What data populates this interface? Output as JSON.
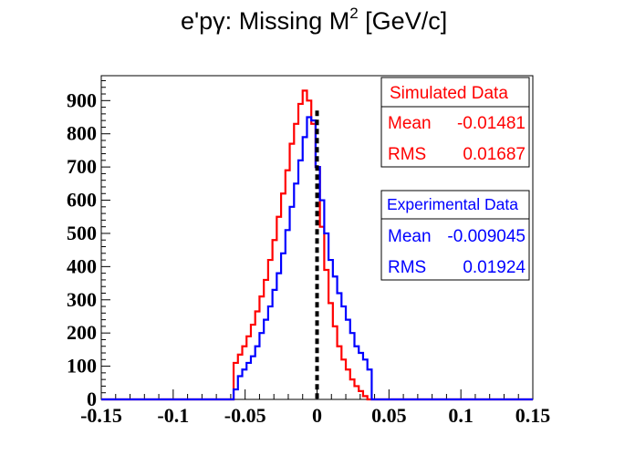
{
  "title_main": "e'pγ: Missing M",
  "title_sup": "2",
  "title_unit": " [GeV/c]",
  "chart_data": {
    "type": "histogram",
    "title": "e'pγ: Missing M² [GeV/c]",
    "xlim": [
      -0.15,
      0.15
    ],
    "ylim": [
      0,
      975
    ],
    "x_ticks": [
      "-0.15",
      "-0.1",
      "-0.05",
      "0",
      "0.05",
      "0.1",
      "0.15"
    ],
    "y_ticks": [
      "0",
      "100",
      "200",
      "300",
      "400",
      "500",
      "600",
      "700",
      "800",
      "900"
    ],
    "cut_line": {
      "x": 0,
      "style": "dashed",
      "color": "#000000"
    },
    "series": [
      {
        "name": "Simulated Data",
        "color": "#ff0000",
        "x": [
          -0.15,
          -0.06,
          -0.058,
          -0.055,
          -0.052,
          -0.049,
          -0.046,
          -0.043,
          -0.04,
          -0.037,
          -0.034,
          -0.031,
          -0.028,
          -0.025,
          -0.022,
          -0.019,
          -0.016,
          -0.013,
          -0.01,
          -0.007,
          -0.004,
          -0.001,
          0.002,
          0.005,
          0.008,
          0.011,
          0.014,
          0.017,
          0.02,
          0.023,
          0.026,
          0.029,
          0.032,
          0.035,
          0.15
        ],
        "y": [
          0,
          0,
          110,
          135,
          160,
          190,
          225,
          265,
          310,
          360,
          420,
          480,
          550,
          620,
          690,
          770,
          830,
          890,
          930,
          900,
          830,
          700,
          520,
          390,
          290,
          220,
          160,
          120,
          90,
          60,
          40,
          25,
          10,
          0,
          0
        ]
      },
      {
        "name": "Experimental Data",
        "color": "#0000ff",
        "x": [
          -0.15,
          -0.06,
          -0.058,
          -0.055,
          -0.052,
          -0.049,
          -0.046,
          -0.043,
          -0.04,
          -0.037,
          -0.034,
          -0.031,
          -0.028,
          -0.025,
          -0.022,
          -0.019,
          -0.016,
          -0.013,
          -0.01,
          -0.007,
          -0.004,
          -0.001,
          0.002,
          0.005,
          0.008,
          0.011,
          0.014,
          0.017,
          0.02,
          0.023,
          0.026,
          0.029,
          0.032,
          0.035,
          0.038,
          0.15
        ],
        "y": [
          0,
          0,
          30,
          70,
          90,
          110,
          130,
          160,
          200,
          240,
          280,
          330,
          380,
          440,
          510,
          580,
          650,
          720,
          790,
          850,
          840,
          700,
          600,
          500,
          420,
          370,
          320,
          280,
          240,
          200,
          160,
          140,
          120,
          90,
          0,
          0
        ]
      }
    ],
    "stats": [
      {
        "name": "Simulated Data",
        "color": "#ff0000",
        "mean_label": "Mean",
        "mean_value": "-0.01481",
        "rms_label": "RMS",
        "rms_value": "0.01687"
      },
      {
        "name": "Experimental Data",
        "color": "#0000ff",
        "mean_label": "Mean",
        "mean_value": "-0.009045",
        "rms_label": "RMS",
        "rms_value": "0.01924"
      }
    ]
  }
}
